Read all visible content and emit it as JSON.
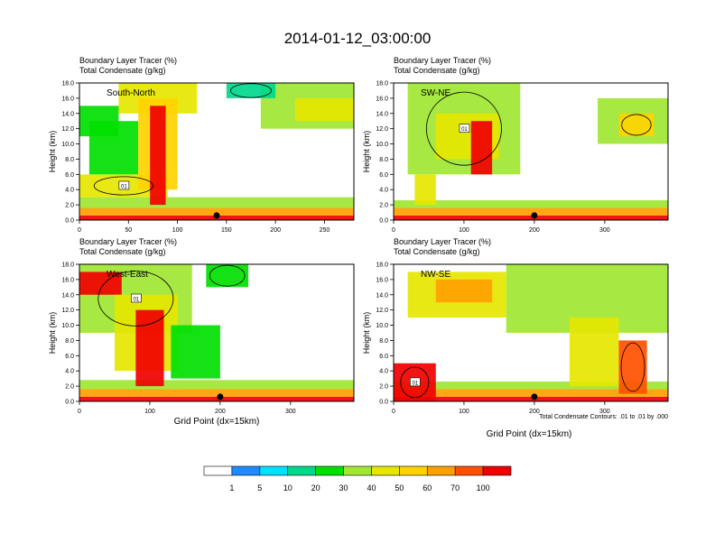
{
  "figure": {
    "title": "2014-01-12_03:00:00",
    "xlabel": "Grid Point (dx=15km)",
    "footnote": "Total Condensate Contours: .01 to .01 by .000",
    "colorbar": {
      "colors": [
        "#ffffff",
        "#1e8cff",
        "#00e0ff",
        "#00d88c",
        "#00e000",
        "#a0e632",
        "#e6e600",
        "#ffd200",
        "#ffa000",
        "#ff5000",
        "#f00000"
      ],
      "labels": [
        "1",
        "5",
        "10",
        "20",
        "30",
        "40",
        "50",
        "60",
        "70",
        "100"
      ]
    }
  },
  "chart_data": [
    {
      "type": "heatmap",
      "subtitle1": "Boundary Layer Tracer   (%)",
      "subtitle2": "Total Condensate   (g/kg)",
      "inner_label": "South-North",
      "ylabel": "Height (km)",
      "xlim": [
        0,
        280
      ],
      "ylim": [
        0,
        18
      ],
      "xticks": [
        "0",
        "50",
        "100",
        "150",
        "200",
        "250"
      ],
      "yticks": [
        "0.0",
        "2.0",
        "4.0",
        "6.0",
        "8.0",
        "10.0",
        "12.0",
        "14.0",
        "16.0",
        "18.0"
      ],
      "marker_x": 140,
      "contour_label": "01",
      "cells": [
        {
          "x": 0,
          "x2": 280,
          "y": 0,
          "y2": 0.6,
          "v": 85
        },
        {
          "x": 0,
          "x2": 280,
          "y": 0.6,
          "y2": 1.6,
          "v": 55
        },
        {
          "x": 0,
          "x2": 280,
          "y": 1.6,
          "y2": 3,
          "v": 25
        },
        {
          "x": 0,
          "x2": 90,
          "y": 3,
          "y2": 6,
          "v": 30
        },
        {
          "x": 10,
          "x2": 60,
          "y": 6,
          "y2": 13,
          "v": 18
        },
        {
          "x": 0,
          "x2": 40,
          "y": 11,
          "y2": 15,
          "v": 12
        },
        {
          "x": 40,
          "x2": 120,
          "y": 14,
          "y2": 18,
          "v": 32
        },
        {
          "x": 60,
          "x2": 100,
          "y": 4,
          "y2": 16,
          "v": 45
        },
        {
          "x": 72,
          "x2": 88,
          "y": 2,
          "y2": 15,
          "v": 75
        },
        {
          "x": 185,
          "x2": 280,
          "y": 12,
          "y2": 18,
          "v": 22
        },
        {
          "x": 220,
          "x2": 280,
          "y": 13,
          "y2": 16,
          "v": 35
        },
        {
          "x": 150,
          "x2": 200,
          "y": 16,
          "y2": 18,
          "v": 8
        }
      ]
    },
    {
      "type": "heatmap",
      "subtitle1": "Boundary Layer Tracer   (%)",
      "subtitle2": "Total Condensate   (g/kg)",
      "inner_label": "SW-NE",
      "ylabel": "Height (km)",
      "xlim": [
        0,
        390
      ],
      "ylim": [
        0,
        18
      ],
      "xticks": [
        "0",
        "100",
        "200",
        "300"
      ],
      "yticks": [
        "0.0",
        "2.0",
        "4.0",
        "6.0",
        "8.0",
        "10.0",
        "12.0",
        "14.0",
        "16.0",
        "18.0"
      ],
      "marker_x": 200,
      "contour_label": "01",
      "cells": [
        {
          "x": 0,
          "x2": 390,
          "y": 0,
          "y2": 0.6,
          "v": 85
        },
        {
          "x": 0,
          "x2": 390,
          "y": 0.6,
          "y2": 1.6,
          "v": 55
        },
        {
          "x": 0,
          "x2": 390,
          "y": 1.6,
          "y2": 2.6,
          "v": 20
        },
        {
          "x": 20,
          "x2": 180,
          "y": 6,
          "y2": 18,
          "v": 20
        },
        {
          "x": 60,
          "x2": 150,
          "y": 8,
          "y2": 14,
          "v": 38
        },
        {
          "x": 110,
          "x2": 140,
          "y": 6,
          "y2": 13,
          "v": 70
        },
        {
          "x": 30,
          "x2": 60,
          "y": 2,
          "y2": 6,
          "v": 30
        },
        {
          "x": 290,
          "x2": 390,
          "y": 10,
          "y2": 16,
          "v": 22
        },
        {
          "x": 320,
          "x2": 370,
          "y": 11,
          "y2": 14,
          "v": 40
        }
      ]
    },
    {
      "type": "heatmap",
      "subtitle1": "Boundary Layer Tracer   (%)",
      "subtitle2": "Total Condensate   (g/kg)",
      "inner_label": "West-East",
      "ylabel": "Height (km)",
      "xlim": [
        0,
        390
      ],
      "ylim": [
        0,
        18
      ],
      "xticks": [
        "0",
        "100",
        "200",
        "300"
      ],
      "yticks": [
        "0.0",
        "2.0",
        "4.0",
        "6.0",
        "8.0",
        "10.0",
        "12.0",
        "14.0",
        "16.0",
        "18.0"
      ],
      "marker_x": 200,
      "contour_label": "01",
      "cells": [
        {
          "x": 0,
          "x2": 390,
          "y": 0,
          "y2": 0.6,
          "v": 85
        },
        {
          "x": 0,
          "x2": 390,
          "y": 0.6,
          "y2": 1.6,
          "v": 55
        },
        {
          "x": 0,
          "x2": 390,
          "y": 1.6,
          "y2": 2.8,
          "v": 20
        },
        {
          "x": 0,
          "x2": 160,
          "y": 9,
          "y2": 18,
          "v": 25
        },
        {
          "x": 0,
          "x2": 60,
          "y": 14,
          "y2": 17,
          "v": 70
        },
        {
          "x": 50,
          "x2": 140,
          "y": 4,
          "y2": 14,
          "v": 35
        },
        {
          "x": 80,
          "x2": 120,
          "y": 2,
          "y2": 12,
          "v": 70
        },
        {
          "x": 130,
          "x2": 200,
          "y": 3,
          "y2": 10,
          "v": 18
        },
        {
          "x": 180,
          "x2": 240,
          "y": 15,
          "y2": 18,
          "v": 10
        }
      ]
    },
    {
      "type": "heatmap",
      "subtitle1": "Boundary Layer Tracer   (%)",
      "subtitle2": "Total Condensate   (g/kg)",
      "inner_label": "NW-SE",
      "ylabel": "Height (km)",
      "xlim": [
        0,
        390
      ],
      "ylim": [
        0,
        18
      ],
      "xticks": [
        "0",
        "100",
        "200",
        "300"
      ],
      "yticks": [
        "0.0",
        "2.0",
        "4.0",
        "6.0",
        "8.0",
        "10.0",
        "12.0",
        "14.0",
        "16.0",
        "18.0"
      ],
      "marker_x": 200,
      "contour_label": "01",
      "cells": [
        {
          "x": 0,
          "x2": 390,
          "y": 0,
          "y2": 0.6,
          "v": 85
        },
        {
          "x": 0,
          "x2": 390,
          "y": 0.6,
          "y2": 1.6,
          "v": 55
        },
        {
          "x": 0,
          "x2": 390,
          "y": 1.6,
          "y2": 2.6,
          "v": 20
        },
        {
          "x": 0,
          "x2": 60,
          "y": 0,
          "y2": 5,
          "v": 70
        },
        {
          "x": 20,
          "x2": 160,
          "y": 11,
          "y2": 17,
          "v": 35
        },
        {
          "x": 60,
          "x2": 140,
          "y": 13,
          "y2": 16,
          "v": 50
        },
        {
          "x": 160,
          "x2": 390,
          "y": 9,
          "y2": 18,
          "v": 25
        },
        {
          "x": 250,
          "x2": 320,
          "y": 2,
          "y2": 11,
          "v": 30
        },
        {
          "x": 320,
          "x2": 360,
          "y": 1,
          "y2": 8,
          "v": 65
        }
      ]
    }
  ]
}
